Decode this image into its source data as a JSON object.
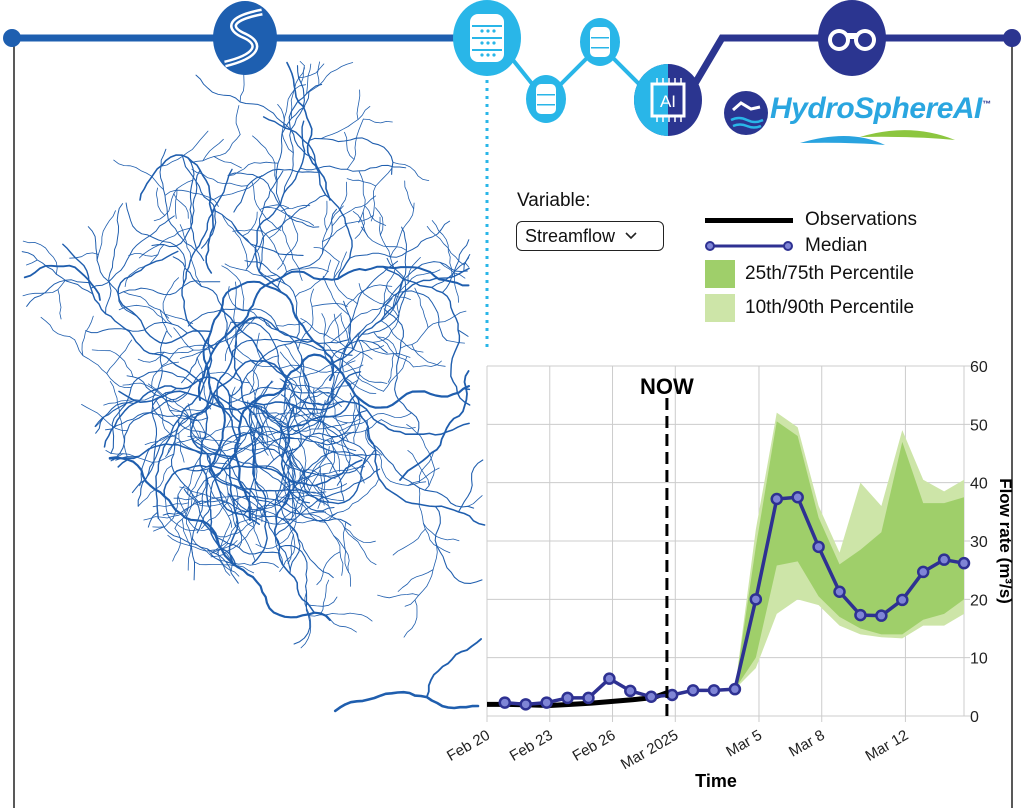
{
  "brand": {
    "name": "HydroSphere AI",
    "name_main": "HydroSphereAI",
    "trademark": "™"
  },
  "pipeline_icons": [
    "river-icon",
    "database-icon",
    "database-small-icon",
    "database-small-icon",
    "ai-chip-icon",
    "binoculars-icon"
  ],
  "ai_chip_label": "AI",
  "variable": {
    "label": "Variable:",
    "selected": "Streamflow"
  },
  "legend": {
    "observations": "Observations",
    "median": "Median",
    "p25_75": "25th/75th Percentile",
    "p10_90": "10th/90th Percentile"
  },
  "colors": {
    "navy": "#2b3590",
    "blue": "#1e5fb0",
    "cyan": "#29b6e8",
    "median": "#2e3192",
    "p25_75": "#9fcf6a",
    "p10_90": "#cde5a8",
    "obs": "#000000",
    "river": "#1f5eae"
  },
  "chart_data": {
    "type": "line",
    "now_label": "NOW",
    "xlabel": "Time",
    "ylabel": "Flow rate (m³/s)",
    "x_unit": "days since Feb 20, 2025",
    "xlim": [
      0,
      22.8
    ],
    "ylim": [
      0,
      60
    ],
    "grid": true,
    "yticks": [
      0,
      10,
      20,
      30,
      40,
      50,
      60
    ],
    "xticks": [
      {
        "x": 0,
        "label": "Feb 20"
      },
      {
        "x": 3,
        "label": "Feb 23"
      },
      {
        "x": 6,
        "label": "Feb 26"
      },
      {
        "x": 9,
        "label": "Mar 2025"
      },
      {
        "x": 13,
        "label": "Mar 5"
      },
      {
        "x": 16,
        "label": "Mar 8"
      },
      {
        "x": 20,
        "label": "Mar 12"
      }
    ],
    "now_x": 8.6,
    "observations": {
      "x": [
        0,
        1,
        2,
        3,
        4,
        5,
        6,
        7,
        8,
        8.6
      ],
      "y": [
        2.0,
        2.0,
        1.9,
        1.8,
        2.0,
        2.2,
        2.5,
        2.8,
        3.2,
        4.0
      ]
    },
    "median": {
      "x": [
        0.85,
        1.85,
        2.85,
        3.85,
        4.85,
        5.85,
        6.85,
        7.85,
        8.85,
        9.85,
        10.85,
        11.85,
        12.85,
        13.85,
        14.85,
        15.85,
        16.85,
        17.85,
        18.85,
        19.85,
        20.85,
        21.85,
        22.8
      ],
      "y": [
        2.3,
        2.0,
        2.3,
        3.1,
        3.1,
        6.4,
        4.3,
        3.3,
        3.6,
        4.4,
        4.4,
        4.6,
        20.0,
        37.2,
        37.5,
        29.0,
        21.3,
        17.3,
        17.2,
        19.9,
        24.7,
        26.8,
        26.2
      ]
    },
    "bands": {
      "x": [
        11.85,
        12.85,
        13.85,
        14.85,
        15.85,
        16.85,
        17.85,
        18.85,
        19.85,
        20.85,
        21.85,
        22.8
      ],
      "p10": [
        4.6,
        8.2,
        17.5,
        20,
        19,
        15.5,
        14,
        13.5,
        13.3,
        15.5,
        15.5,
        17.5
      ],
      "p25": [
        4.6,
        10,
        25.8,
        26.5,
        20.5,
        17,
        15,
        14,
        14,
        16.5,
        17.5,
        20
      ],
      "p75": [
        4.6,
        29,
        50.5,
        48,
        34,
        26,
        28.5,
        31.5,
        47,
        36.5,
        36.5,
        37.5
      ],
      "p90": [
        4.6,
        32,
        52,
        49.5,
        36,
        28,
        40,
        36,
        49,
        40.5,
        38.5,
        40.5
      ]
    }
  }
}
